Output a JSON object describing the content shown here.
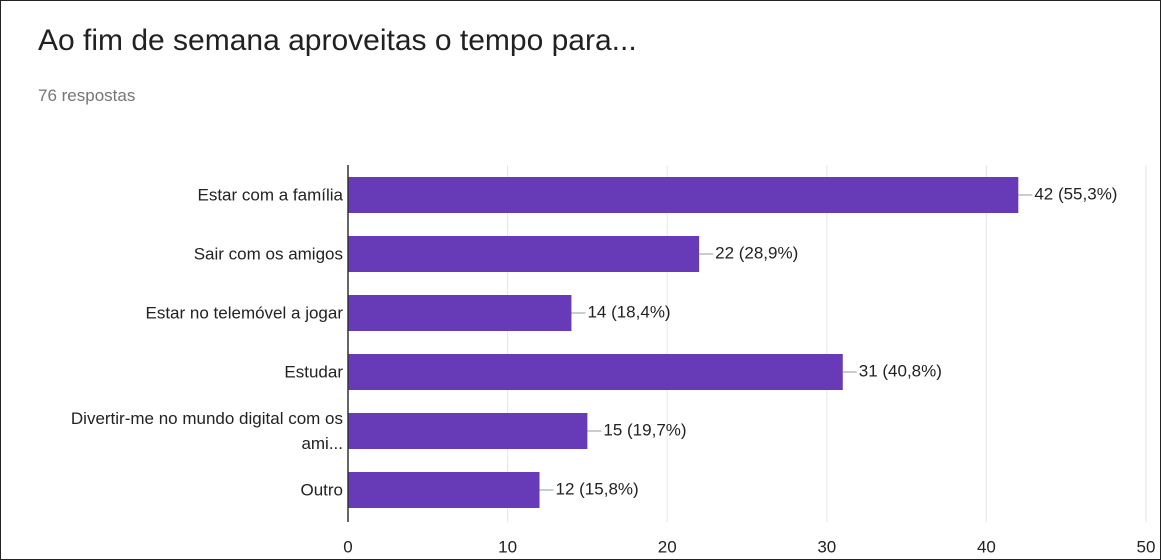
{
  "chart_data": {
    "type": "bar",
    "orientation": "horizontal",
    "title": "Ao fim de semana aproveitas o tempo para...",
    "subtitle": "76 respostas",
    "categories": [
      "Estar com a família",
      "Sair com os amigos",
      "Estar no telemóvel a jogar",
      "Estudar",
      "Divertir-me no mundo digital com os ami...",
      "Outro"
    ],
    "values": [
      42,
      22,
      14,
      31,
      15,
      12
    ],
    "value_labels": [
      "42 (55,3%)",
      "22 (28,9%)",
      "14 (18,4%)",
      "31 (40,8%)",
      "15 (19,7%)",
      "12 (15,8%)"
    ],
    "color": "#673ab7",
    "xlim": [
      0,
      50
    ],
    "xticks": [
      0,
      10,
      20,
      30,
      40,
      50
    ],
    "grid": true
  }
}
